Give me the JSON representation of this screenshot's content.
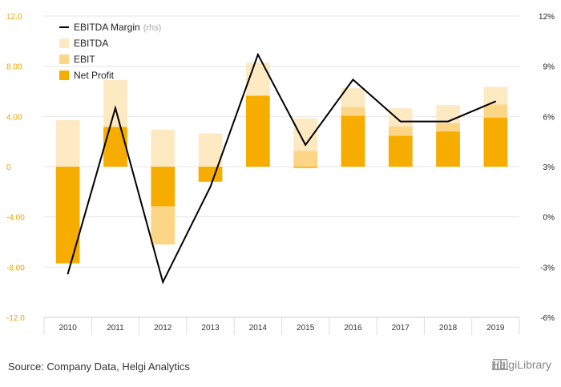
{
  "chart_data": {
    "type": "bar",
    "categories": [
      "2010",
      "2011",
      "2012",
      "2013",
      "2014",
      "2015",
      "2016",
      "2017",
      "2018",
      "2019"
    ],
    "series": [
      {
        "name": "EBITDA",
        "kind": "bar",
        "axis": "left",
        "values": [
          3.7,
          6.9,
          2.95,
          2.65,
          8.3,
          3.85,
          6.25,
          4.65,
          4.9,
          6.35
        ]
      },
      {
        "name": "EBIT",
        "kind": "bar",
        "axis": "left",
        "values": [
          -7.1,
          3.2,
          -6.2,
          -0.45,
          5.6,
          1.25,
          4.75,
          3.2,
          3.45,
          4.95
        ]
      },
      {
        "name": "Net Profit",
        "kind": "bar",
        "axis": "left",
        "values": [
          -7.7,
          3.15,
          -3.15,
          -1.2,
          5.65,
          -0.1,
          4.05,
          2.45,
          2.8,
          3.9
        ]
      },
      {
        "name": "EBITDA Margin",
        "suffix": "(rhs)",
        "kind": "line",
        "axis": "right",
        "values": [
          -3.4,
          6.5,
          -3.9,
          1.8,
          9.7,
          4.3,
          8.2,
          5.7,
          5.7,
          6.9
        ]
      }
    ],
    "ylim_left": [
      -12,
      12
    ],
    "yticks_left": [
      "12.0",
      "8.00",
      "4.00",
      "0",
      "-4.00",
      "-8.00",
      "-12.0"
    ],
    "ylim_right": [
      -6,
      12
    ],
    "yticks_right": [
      "12%",
      "9%",
      "6%",
      "3%",
      "0%",
      "-3%",
      "-6%"
    ],
    "legend_position": "top-left",
    "grid": "horizontal"
  },
  "colors": {
    "ebitda": "#fde9c2",
    "ebit": "#fcd686",
    "net_profit": "#f7ad00",
    "line": "#000000",
    "grid": "#e6e6e6"
  },
  "source_text": "Source: Company Data, Helgi Analytics",
  "logo_text": "HelgiLibrary"
}
